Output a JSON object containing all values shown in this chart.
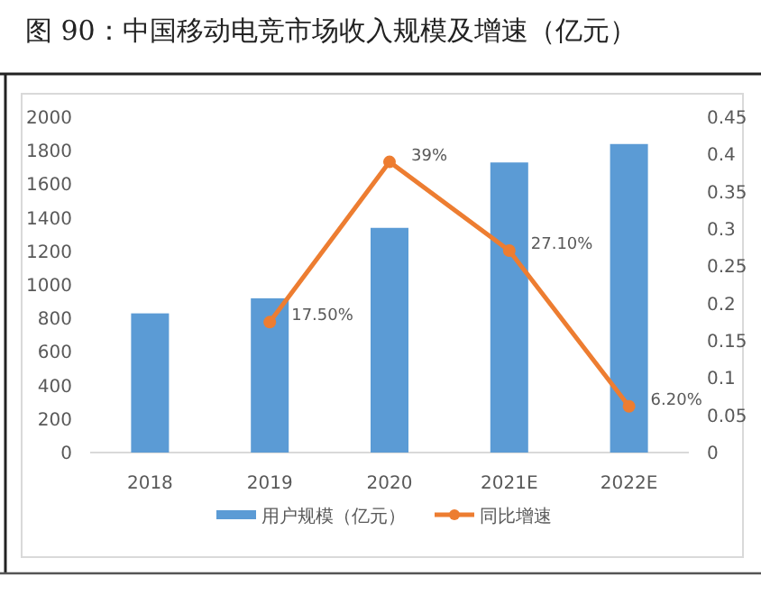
{
  "chart_data": {
    "type": "bar",
    "title": "图 90：中国移动电竞市场收入规模及增速（亿元）",
    "categories": [
      "2018",
      "2019",
      "2020",
      "2021E",
      "2022E"
    ],
    "series": [
      {
        "name": "用户规模（亿元）",
        "color": "#5b9bd5",
        "values": [
          830,
          920,
          1340,
          1730,
          1840
        ]
      },
      {
        "name": "同比增速",
        "type": "line",
        "axis": "y2",
        "color": "#ed7d31",
        "marker": "circle",
        "values": [
          null,
          0.175,
          0.39,
          0.271,
          0.062
        ],
        "value_labels": [
          null,
          "17.50%",
          "39%",
          "27.10%",
          "6.20%"
        ]
      }
    ],
    "ylim": [
      0,
      2000
    ],
    "yticks": [
      0,
      200,
      400,
      600,
      800,
      1000,
      1200,
      1400,
      1600,
      1800,
      2000
    ],
    "y2lim": [
      0,
      0.45
    ],
    "y2ticks": [
      0,
      0.05,
      0.1,
      0.15,
      0.2,
      0.25,
      0.3,
      0.35,
      0.4,
      0.45
    ],
    "legend": "bottom",
    "grid": false
  }
}
